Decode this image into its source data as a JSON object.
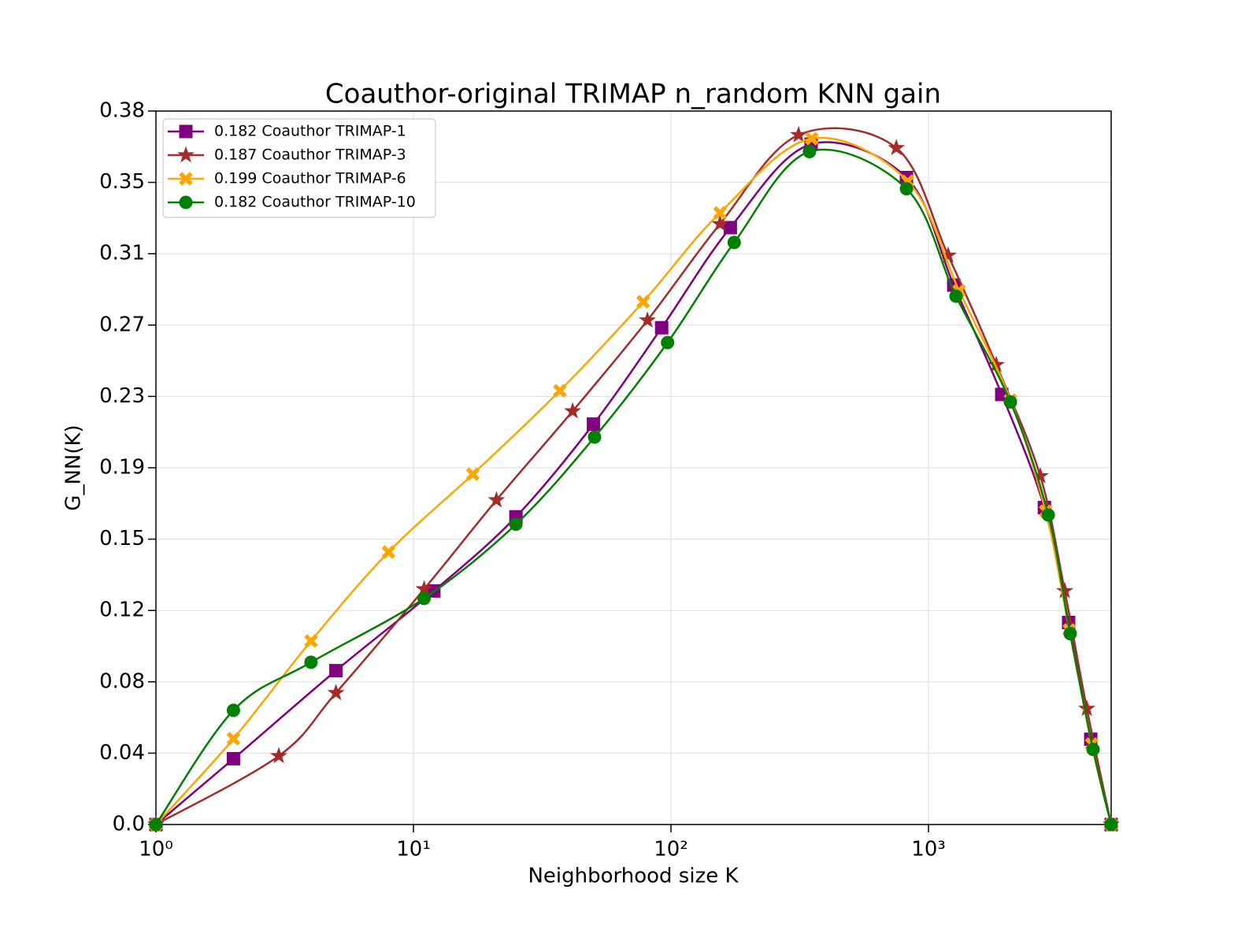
{
  "chart_data": {
    "type": "line",
    "title": "Coauthor-original TRIMAP n_random KNN gain",
    "xlabel": "Neighborhood size K",
    "ylabel": "G_NN(K)",
    "xscale": "log",
    "xlim": [
      1,
      5120
    ],
    "xticks": [
      {
        "value": 1,
        "label": "10⁰"
      },
      {
        "value": 10,
        "label": "10¹"
      },
      {
        "value": 100,
        "label": "10²"
      },
      {
        "value": 1000,
        "label": "10³"
      }
    ],
    "ylim": [
      0,
      0.3849
    ],
    "yticks": [
      {
        "value": 0,
        "label": "0.0"
      },
      {
        "value": 0.03849,
        "label": "0.04"
      },
      {
        "value": 0.07698,
        "label": "0.08"
      },
      {
        "value": 0.11547,
        "label": "0.12"
      },
      {
        "value": 0.15396,
        "label": "0.15"
      },
      {
        "value": 0.19245,
        "label": "0.19"
      },
      {
        "value": 0.23094,
        "label": "0.23"
      },
      {
        "value": 0.26943,
        "label": "0.27"
      },
      {
        "value": 0.30792,
        "label": "0.31"
      },
      {
        "value": 0.34641,
        "label": "0.35"
      },
      {
        "value": 0.3849,
        "label": "0.38"
      }
    ],
    "grid": true,
    "legend": "upper left",
    "series": [
      {
        "name": "0.182 Coauthor TRIMAP-1",
        "color": "#800080",
        "marker": "square",
        "x": [
          1,
          2,
          5,
          12,
          25,
          50,
          92,
          170,
          350,
          821,
          1253,
          1925,
          2818,
          3500,
          4266,
          5120
        ],
        "values": [
          0,
          0.0355,
          0.083,
          0.126,
          0.166,
          0.216,
          0.268,
          0.322,
          0.367,
          0.349,
          0.291,
          0.232,
          0.171,
          0.109,
          0.046,
          0
        ]
      },
      {
        "name": "0.187 Coauthor TRIMAP-3",
        "color": "#a52a2a",
        "marker": "star",
        "x": [
          1,
          3,
          5,
          11,
          21,
          41.5,
          81,
          155,
          313,
          750,
          1192,
          1833,
          2716,
          3381,
          4120,
          5120
        ],
        "values": [
          0,
          0.037,
          0.071,
          0.127,
          0.175,
          0.223,
          0.272,
          0.324,
          0.372,
          0.365,
          0.307,
          0.248,
          0.188,
          0.126,
          0.0625,
          0
        ]
      },
      {
        "name": "0.199 Coauthor TRIMAP-6",
        "color": "#ffa500",
        "marker": "x",
        "x": [
          1,
          2,
          4,
          8,
          17,
          37,
          78,
          155,
          352,
          830,
          1315,
          2080,
          2850,
          3520,
          4300,
          5120
        ],
        "values": [
          0,
          0.0463,
          0.099,
          0.147,
          0.189,
          0.234,
          0.282,
          0.33,
          0.37,
          0.347,
          0.288,
          0.229,
          0.169,
          0.105,
          0.0434,
          0
        ]
      },
      {
        "name": "0.182 Coauthor TRIMAP-10",
        "color": "#008000",
        "marker": "circle",
        "x": [
          1,
          2,
          4,
          11,
          25,
          50.5,
          97,
          176,
          345,
          821,
          1279,
          2080,
          2917,
          3550,
          4355,
          5120
        ],
        "values": [
          0,
          0.0616,
          0.0875,
          0.122,
          0.162,
          0.209,
          0.26,
          0.314,
          0.363,
          0.343,
          0.285,
          0.228,
          0.167,
          0.103,
          0.0405,
          0
        ]
      }
    ]
  }
}
